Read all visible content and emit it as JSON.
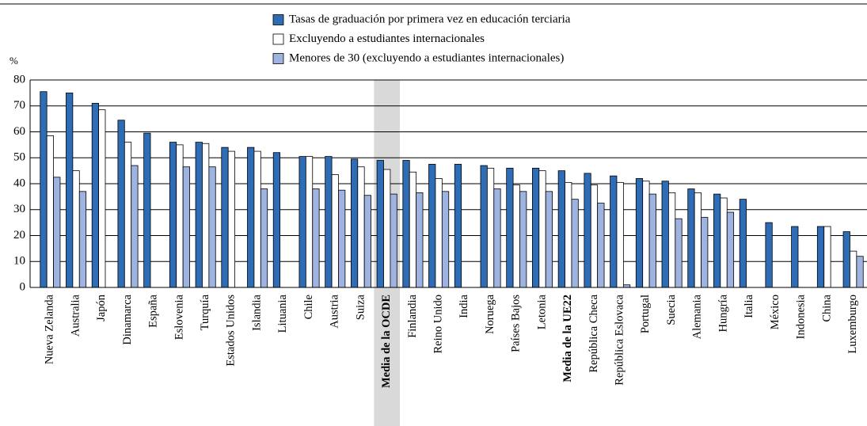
{
  "chart_data": {
    "type": "bar",
    "y_label": "%",
    "categories": [
      "Nueva Zelanda",
      "Australia",
      "Japón",
      "Dinamarca",
      "España",
      "Eslovenia",
      "Turquía",
      "Estados Unidos",
      "Islandia",
      "Lituania",
      "Chile",
      "Austria",
      "Suiza",
      "Media de la OCDE",
      "Finlandia",
      "Reino Unido",
      "India",
      "Noruega",
      "Países Bajos",
      "Letonia",
      "Media de la UE22",
      "República Checa",
      "República Eslovaca",
      "Portugal",
      "Suecia",
      "Alemania",
      "Hungría",
      "Italia",
      "México",
      "Indonesia",
      "China",
      "Luxemburgo"
    ],
    "series": [
      {
        "name": "Tasas de graduación por primera vez en educación terciaria",
        "color": "#2e6db5",
        "values": [
          75.5,
          75,
          71,
          64.5,
          59.5,
          56,
          56,
          54,
          54,
          52,
          50.5,
          50.5,
          49.5,
          49,
          49,
          47.5,
          47.5,
          47,
          46,
          46,
          45,
          44,
          43,
          42,
          41,
          38,
          36,
          34,
          25,
          23.5,
          23.5,
          21.5
        ]
      },
      {
        "name": "Excluyendo a estudiantes internacionales",
        "color": "#ffffff",
        "values": [
          58.5,
          45,
          68.5,
          56,
          null,
          55,
          55.5,
          52.5,
          52.5,
          null,
          50.5,
          43.5,
          46.5,
          45.5,
          44.5,
          42,
          null,
          46,
          39.5,
          45,
          40.5,
          39.5,
          40.5,
          41,
          36.5,
          36.5,
          34.5,
          null,
          null,
          null,
          23.5,
          14
        ]
      },
      {
        "name": "Menores de 30 (excluyendo a estudiantes internacionales)",
        "color": "#9fb3e0",
        "values": [
          42.5,
          37,
          null,
          47,
          null,
          46.5,
          46.5,
          null,
          38,
          null,
          38,
          37.5,
          35.5,
          36,
          36.5,
          37,
          null,
          38,
          37,
          37,
          34,
          32.5,
          1,
          36,
          26.5,
          27,
          29,
          null,
          null,
          null,
          null,
          12
        ]
      }
    ],
    "ylim": [
      0,
      80
    ],
    "yticks": [
      0,
      10,
      20,
      30,
      40,
      50,
      60,
      70,
      80
    ],
    "grid": true,
    "highlight_index": 13,
    "bold_indices": [
      13,
      20
    ]
  }
}
